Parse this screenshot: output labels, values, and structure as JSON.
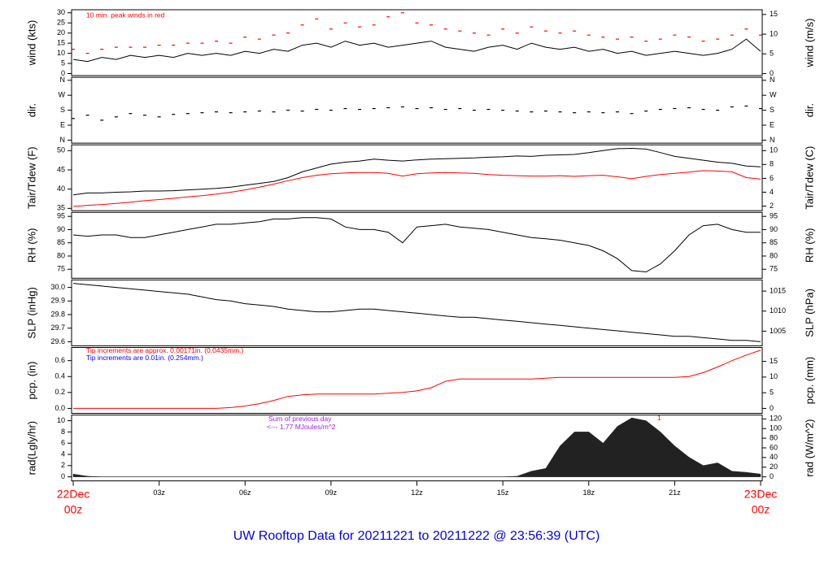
{
  "title": "UW Rooftop Data for 20211221  to  20211222 @ 23:56:39  (UTC)",
  "chart_data": {
    "type": "multi-panel",
    "xlim": [
      0,
      24
    ],
    "xticks": [
      {
        "value": 0,
        "label": "00z",
        "date": "22Dec"
      },
      {
        "value": 3,
        "label": "03z"
      },
      {
        "value": 6,
        "label": "06z"
      },
      {
        "value": 9,
        "label": "09z"
      },
      {
        "value": 12,
        "label": "12z"
      },
      {
        "value": 15,
        "label": "15z"
      },
      {
        "value": 18,
        "label": "18z"
      },
      {
        "value": 21,
        "label": "21z"
      },
      {
        "value": 24,
        "label": "00z",
        "date": "23Dec"
      }
    ],
    "x": [
      0,
      0.5,
      1,
      1.5,
      2,
      2.5,
      3,
      3.5,
      4,
      4.5,
      5,
      5.5,
      6,
      6.5,
      7,
      7.5,
      8,
      8.5,
      9,
      9.5,
      10,
      10.5,
      11,
      11.5,
      12,
      12.5,
      13,
      13.5,
      14,
      14.5,
      15,
      15.5,
      16,
      16.5,
      17,
      17.5,
      18,
      18.5,
      19,
      19.5,
      20,
      20.5,
      21,
      21.5,
      22,
      22.5,
      23,
      23.5,
      24
    ],
    "panels": [
      {
        "type": "line",
        "ylabel": "wind (kts)",
        "y2label": "wind (m/s)",
        "ylim": [
          -1,
          31.5
        ],
        "yticks": [
          0,
          5,
          10,
          15,
          20,
          25,
          30
        ],
        "y2lim": [
          -0.5,
          16.2
        ],
        "y2ticks": [
          0,
          5,
          10,
          15
        ],
        "annotations": [
          {
            "text": "10 min. peak winds in red",
            "color": "#ff0000"
          }
        ],
        "series": [
          {
            "type": "line",
            "color": "#000000",
            "values": [
              7,
              6,
              8,
              7,
              9,
              8,
              9,
              8,
              10,
              9,
              10,
              9,
              11,
              10,
              12,
              11,
              14,
              15,
              13,
              16,
              14,
              15,
              13,
              14,
              15,
              16,
              13,
              12,
              11,
              13,
              14,
              12,
              15,
              13,
              12,
              13,
              11,
              12,
              10,
              11,
              9,
              10,
              11,
              10,
              9,
              10,
              12,
              17,
              11
            ]
          },
          {
            "type": "dash",
            "color": "#ff0000",
            "values": [
              12,
              10,
              12,
              13,
              13,
              13,
              14,
              14,
              15,
              15,
              16,
              15,
              18,
              17,
              19,
              20,
              24,
              27,
              22,
              25,
              23,
              24,
              28,
              30,
              25,
              24,
              22,
              21,
              20,
              19,
              22,
              20,
              23,
              21,
              20,
              21,
              19,
              18,
              17,
              18,
              16,
              17,
              19,
              18,
              16,
              17,
              19,
              22,
              19
            ]
          }
        ]
      },
      {
        "type": "scatter",
        "ylabel": "dir.",
        "y2label": "dir.",
        "ylim": [
          -18,
          378
        ],
        "yticks": [
          {
            "value": 0,
            "label": "N"
          },
          {
            "value": 90,
            "label": "E"
          },
          {
            "value": 180,
            "label": "S"
          },
          {
            "value": 270,
            "label": "W"
          },
          {
            "value": 360,
            "label": "N"
          }
        ],
        "y2lim": [
          -18,
          378
        ],
        "y2ticks": [
          {
            "value": 0,
            "label": "N"
          },
          {
            "value": 90,
            "label": "E"
          },
          {
            "value": 180,
            "label": "S"
          },
          {
            "value": 270,
            "label": "W"
          },
          {
            "value": 360,
            "label": "N"
          }
        ],
        "series": [
          {
            "type": "dash",
            "color": "#000000",
            "values": [
              130,
              150,
              120,
              140,
              160,
              150,
              140,
              155,
              160,
              165,
              170,
              165,
              170,
              175,
              170,
              180,
              175,
              185,
              180,
              190,
              185,
              190,
              195,
              200,
              190,
              195,
              185,
              190,
              180,
              185,
              180,
              175,
              170,
              175,
              170,
              165,
              170,
              165,
              170,
              160,
              175,
              185,
              190,
              195,
              185,
              180,
              200,
              205,
              190
            ]
          }
        ]
      },
      {
        "type": "line",
        "ylabel": "Tair/Tdew (F)",
        "y2label": "Tair/Tdew (C)",
        "ylim": [
          34.4,
          51.5
        ],
        "yticks": [
          35,
          40,
          45,
          50
        ],
        "y2lim": [
          1.33,
          10.83
        ],
        "y2ticks": [
          2,
          4,
          6,
          8,
          10
        ],
        "series": [
          {
            "type": "line",
            "color": "#000000",
            "values": [
              38.5,
              39,
              39,
              39.2,
              39.3,
              39.5,
              39.5,
              39.6,
              39.8,
              40,
              40.2,
              40.5,
              41,
              41.5,
              42,
              43,
              44.5,
              45.5,
              46.5,
              47,
              47.3,
              47.8,
              47.5,
              47.3,
              47.6,
              47.8,
              47.9,
              48,
              48.1,
              48.3,
              48.4,
              48.6,
              48.5,
              48.8,
              48.9,
              49,
              49.5,
              50,
              50.5,
              50.6,
              50.4,
              49.5,
              48.5,
              48,
              47.5,
              47,
              46.7,
              46,
              45.8
            ]
          },
          {
            "type": "line",
            "color": "#ff0000",
            "values": [
              35.5,
              35.8,
              36,
              36.3,
              36.6,
              37,
              37.3,
              37.6,
              38,
              38.3,
              38.7,
              39.2,
              39.8,
              40.5,
              41.3,
              42.2,
              43,
              43.6,
              44,
              44.2,
              44.3,
              44.3,
              44.1,
              43.4,
              44,
              44.2,
              44.3,
              44.2,
              44.1,
              43.8,
              43.6,
              43.5,
              43.4,
              43.4,
              43.5,
              43.3,
              43.5,
              43.6,
              43.2,
              42.7,
              43.3,
              43.8,
              44.1,
              44.4,
              44.8,
              44.7,
              44.5,
              43,
              42.6
            ]
          }
        ]
      },
      {
        "type": "line",
        "ylabel": "RH (%)",
        "y2label": "RH (%)",
        "ylim": [
          71.6,
          96.5
        ],
        "yticks": [
          75,
          80,
          85,
          90,
          95
        ],
        "y2lim": [
          71.6,
          96.5
        ],
        "y2ticks": [
          75,
          80,
          85,
          90,
          95
        ],
        "series": [
          {
            "type": "line",
            "color": "#000000",
            "values": [
              88,
              87.5,
              88,
              88,
              87,
              87,
              88,
              89,
              90,
              91,
              92,
              92,
              92.5,
              93,
              94,
              94,
              94.5,
              94.5,
              94,
              91,
              90,
              90,
              89,
              85,
              91,
              91.5,
              92,
              91,
              90.5,
              90,
              89,
              88,
              87,
              86.5,
              86,
              85,
              84,
              82,
              79,
              74.5,
              74,
              77,
              82,
              88,
              91.5,
              92,
              90,
              89,
              89
            ]
          }
        ]
      },
      {
        "type": "line",
        "ylabel": "SLP (inHg)",
        "y2label": "SLP (hPa)",
        "ylim": [
          29.57,
          30.055
        ],
        "yticks": [
          {
            "value": 29.6,
            "label": "29.6"
          },
          {
            "value": 29.7,
            "label": "29.7"
          },
          {
            "value": 29.8,
            "label": "29.8"
          },
          {
            "value": 29.9,
            "label": "29.9"
          },
          {
            "value": 30,
            "label": "30.0"
          }
        ],
        "y2lim": [
          1001.35,
          1017.78
        ],
        "y2ticks": [
          1005,
          1010,
          1015
        ],
        "series": [
          {
            "type": "line",
            "color": "#000000",
            "values": [
              30.03,
              30.02,
              30.01,
              30.0,
              29.99,
              29.98,
              29.97,
              29.96,
              29.95,
              29.93,
              29.91,
              29.9,
              29.88,
              29.87,
              29.86,
              29.84,
              29.83,
              29.82,
              29.82,
              29.83,
              29.84,
              29.84,
              29.83,
              29.82,
              29.81,
              29.8,
              29.79,
              29.78,
              29.78,
              29.77,
              29.76,
              29.75,
              29.74,
              29.73,
              29.72,
              29.71,
              29.7,
              29.69,
              29.68,
              29.67,
              29.66,
              29.65,
              29.64,
              29.64,
              29.63,
              29.62,
              29.61,
              29.61,
              29.6
            ]
          }
        ]
      },
      {
        "type": "line",
        "ylabel": "pcp. (in)",
        "y2label": "pcp. (mm)",
        "ylim": [
          -0.062,
          0.765
        ],
        "yticks": [
          {
            "value": 0,
            "label": "0.0"
          },
          {
            "value": 0.2,
            "label": "0.2"
          },
          {
            "value": 0.4,
            "label": "0.4"
          },
          {
            "value": 0.6,
            "label": "0.6"
          }
        ],
        "y2lim": [
          -1.57,
          19.43
        ],
        "y2ticks": [
          0,
          5,
          10,
          15
        ],
        "annotations": [
          {
            "text": "Tip increments are approx. 0.00171in. (0.0435mm.)",
            "color": "#ff0000"
          },
          {
            "text": "Tip increments are 0.01in. (0.254mm.)",
            "color": "#0000ff"
          }
        ],
        "series": [
          {
            "type": "line",
            "color": "#ff0000",
            "values": [
              0,
              0,
              0,
              0,
              0,
              0,
              0,
              0,
              0,
              0,
              0,
              0.01,
              0.03,
              0.06,
              0.1,
              0.15,
              0.17,
              0.18,
              0.18,
              0.18,
              0.18,
              0.18,
              0.19,
              0.2,
              0.22,
              0.26,
              0.34,
              0.37,
              0.37,
              0.37,
              0.37,
              0.37,
              0.37,
              0.38,
              0.39,
              0.39,
              0.39,
              0.39,
              0.39,
              0.39,
              0.39,
              0.39,
              0.39,
              0.4,
              0.45,
              0.52,
              0.6,
              0.67,
              0.73
            ]
          }
        ]
      },
      {
        "type": "area",
        "ylabel": "rad(Lgly/hr)",
        "y2label": "rad (W/m^2)",
        "ylim": [
          -0.72,
          11.01
        ],
        "yticks": [
          0,
          2,
          4,
          6,
          8,
          10
        ],
        "y2lim": [
          -8.4,
          128
        ],
        "y2ticks": [
          0,
          20,
          40,
          60,
          80,
          100,
          120
        ],
        "annotations": [
          {
            "text": "Sum of previous day",
            "color": "#a020f0"
          },
          {
            "text": "<--- 1.77 MJoules/m^2",
            "color": "#a020f0"
          },
          {
            "text": "1",
            "color": "#ff0000"
          }
        ],
        "series": [
          {
            "type": "area",
            "color": "#222222",
            "values": [
              0.5,
              0.1,
              0,
              0,
              0,
              0,
              0,
              0,
              0,
              0,
              0,
              0,
              0,
              0,
              0,
              0,
              0,
              0,
              0,
              0,
              0,
              0,
              0,
              0,
              0,
              0,
              0,
              0,
              0,
              0,
              0,
              0.1,
              1,
              1.5,
              5.5,
              8,
              8,
              6,
              9,
              10.5,
              10,
              8,
              5.5,
              3.5,
              2,
              2.5,
              1,
              0.8,
              0.5
            ]
          }
        ]
      }
    ]
  }
}
